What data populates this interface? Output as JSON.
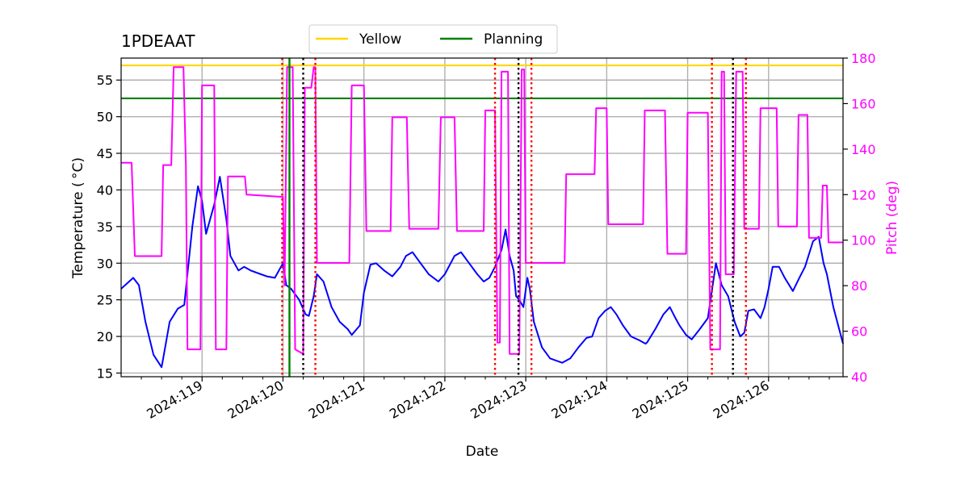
{
  "chart_data": {
    "type": "line",
    "title": "1PDEAAT",
    "xlabel": "Date",
    "ylabel": "Temperature ($^\\circ$C)",
    "ylabel_display": "Temperature ( °C)",
    "y2label": "Pitch (deg)",
    "x_unit": "day-of-year 2024",
    "xlim": [
      118.0,
      126.92
    ],
    "ylim": [
      14.5,
      58.0
    ],
    "y2lim": [
      40,
      180
    ],
    "xticks": [
      {
        "value": 119,
        "label": "2024:119"
      },
      {
        "value": 120,
        "label": "2024:120"
      },
      {
        "value": 121,
        "label": "2024:121"
      },
      {
        "value": 122,
        "label": "2024:122"
      },
      {
        "value": 123,
        "label": "2024:123"
      },
      {
        "value": 124,
        "label": "2024:124"
      },
      {
        "value": 125,
        "label": "2024:125"
      },
      {
        "value": 126,
        "label": "2024:126"
      }
    ],
    "yticks": [
      15,
      20,
      25,
      30,
      35,
      40,
      45,
      50,
      55
    ],
    "y2ticks": [
      40,
      60,
      80,
      100,
      120,
      140,
      160,
      180
    ],
    "grid": true,
    "legend_placement": "top-center",
    "legend": [
      {
        "name": "Yellow",
        "color": "#ffd700"
      },
      {
        "name": "Planning",
        "color": "#008000"
      }
    ],
    "hlines": [
      {
        "name": "Yellow",
        "y": 57.0,
        "color": "#ffd700"
      },
      {
        "name": "Planning",
        "y": 52.5,
        "color": "#008000"
      }
    ],
    "vlines": [
      {
        "x": 120.08,
        "color": "#008000",
        "style": "solid"
      },
      {
        "x": 119.99,
        "color": "#ff0000",
        "style": "dotted"
      },
      {
        "x": 120.4,
        "color": "#ff0000",
        "style": "dotted"
      },
      {
        "x": 122.62,
        "color": "#ff0000",
        "style": "dotted"
      },
      {
        "x": 123.07,
        "color": "#ff0000",
        "style": "dotted"
      },
      {
        "x": 125.3,
        "color": "#ff0000",
        "style": "dotted"
      },
      {
        "x": 125.72,
        "color": "#ff0000",
        "style": "dotted"
      },
      {
        "x": 120.25,
        "color": "#000000",
        "style": "dotted"
      },
      {
        "x": 122.91,
        "color": "#000000",
        "style": "dotted"
      },
      {
        "x": 125.56,
        "color": "#000000",
        "style": "dotted"
      }
    ],
    "series": [
      {
        "name": "",
        "axis": "left",
        "color": "#0000ff",
        "x": [
          118.0,
          118.15,
          118.22,
          118.3,
          118.4,
          118.5,
          118.52,
          118.6,
          118.7,
          118.78,
          118.88,
          118.95,
          119.0,
          119.05,
          119.15,
          119.22,
          119.3,
          119.35,
          119.45,
          119.52,
          119.6,
          119.7,
          119.8,
          119.9,
          120.0,
          120.04,
          120.1,
          120.2,
          120.28,
          120.32,
          120.38,
          120.42,
          120.5,
          120.6,
          120.7,
          120.8,
          120.85,
          120.95,
          121.0,
          121.08,
          121.15,
          121.25,
          121.35,
          121.45,
          121.52,
          121.6,
          121.7,
          121.8,
          121.92,
          122.0,
          122.12,
          122.2,
          122.3,
          122.4,
          122.48,
          122.55,
          122.62,
          122.7,
          122.75,
          122.8,
          122.85,
          122.88,
          122.92,
          122.97,
          123.02,
          123.05,
          123.1,
          123.2,
          123.3,
          123.45,
          123.55,
          123.65,
          123.75,
          123.82,
          123.9,
          123.98,
          124.05,
          124.12,
          124.2,
          124.3,
          124.4,
          124.48,
          124.5,
          124.6,
          124.7,
          124.78,
          124.85,
          124.9,
          124.98,
          125.05,
          125.15,
          125.25,
          125.35,
          125.42,
          125.5,
          125.58,
          125.65,
          125.7,
          125.75,
          125.82,
          125.9,
          125.95,
          126.0,
          126.05,
          126.13,
          126.2,
          126.3,
          126.38,
          126.45,
          126.55,
          126.62,
          126.68,
          126.72,
          126.8,
          126.92
        ],
        "y": [
          26.5,
          28.0,
          27.0,
          22.0,
          17.5,
          15.8,
          17.0,
          22.0,
          23.8,
          24.3,
          35.0,
          40.5,
          38.5,
          34.0,
          38.0,
          41.8,
          36.0,
          31.0,
          29.0,
          29.5,
          29.0,
          28.6,
          28.2,
          28.0,
          30.0,
          27.0,
          26.5,
          25.0,
          23.0,
          22.8,
          25.5,
          28.5,
          27.5,
          24.0,
          22.0,
          21.0,
          20.2,
          21.5,
          26.0,
          29.8,
          30.0,
          29.0,
          28.2,
          29.5,
          31.0,
          31.5,
          30.0,
          28.5,
          27.5,
          28.5,
          31.0,
          31.5,
          30.0,
          28.5,
          27.5,
          28.0,
          29.5,
          31.8,
          34.6,
          31.0,
          29.0,
          25.5,
          25.0,
          24.0,
          28.0,
          26.5,
          22.0,
          18.5,
          17.0,
          16.4,
          17.0,
          18.5,
          19.8,
          20.0,
          22.5,
          23.5,
          24.0,
          23.0,
          21.5,
          20.0,
          19.5,
          19.0,
          19.2,
          21.0,
          23.0,
          24.0,
          22.5,
          21.5,
          20.2,
          19.6,
          21.0,
          22.5,
          30.0,
          27.0,
          25.5,
          22.0,
          20.0,
          20.5,
          23.5,
          23.7,
          22.5,
          24.0,
          26.5,
          29.5,
          29.5,
          28.0,
          26.2,
          28.0,
          29.5,
          33.0,
          33.6,
          30.0,
          28.5,
          24.0,
          19.0
        ]
      },
      {
        "name": "",
        "axis": "right",
        "color": "#ff00ff",
        "x": [
          118.0,
          118.13,
          118.17,
          118.5,
          118.52,
          118.62,
          118.65,
          118.77,
          118.8,
          118.82,
          118.98,
          119.0,
          119.15,
          119.17,
          119.3,
          119.32,
          119.53,
          119.55,
          120.0,
          120.02,
          120.05,
          120.12,
          120.15,
          120.25,
          120.27,
          120.35,
          120.38,
          120.4,
          120.42,
          120.82,
          120.85,
          121.0,
          121.03,
          121.33,
          121.35,
          121.53,
          121.56,
          121.92,
          121.95,
          122.12,
          122.15,
          122.48,
          122.5,
          122.62,
          122.65,
          122.68,
          122.7,
          122.78,
          122.8,
          122.92,
          122.95,
          122.98,
          123.0,
          123.08,
          123.1,
          123.48,
          123.5,
          123.85,
          123.87,
          124.0,
          124.02,
          124.45,
          124.47,
          124.72,
          124.75,
          124.98,
          125.0,
          125.25,
          125.28,
          125.4,
          125.42,
          125.45,
          125.47,
          125.57,
          125.6,
          125.68,
          125.7,
          125.88,
          125.9,
          126.1,
          126.12,
          126.35,
          126.37,
          126.48,
          126.5,
          126.65,
          126.67,
          126.72,
          126.74,
          126.92
        ],
        "y": [
          134,
          134,
          93,
          93,
          133,
          133,
          176,
          176,
          133,
          52,
          52,
          168,
          168,
          52,
          52,
          128,
          128,
          120,
          119,
          80,
          176,
          176,
          52,
          50,
          167,
          167,
          176,
          176,
          90,
          90,
          168,
          168,
          104,
          104,
          154,
          154,
          105,
          105,
          154,
          154,
          104,
          104,
          157,
          157,
          55,
          55,
          174,
          174,
          50,
          50,
          175,
          175,
          90,
          90,
          90,
          90,
          129,
          129,
          158,
          158,
          107,
          107,
          157,
          157,
          94,
          94,
          156,
          156,
          52,
          52,
          174,
          174,
          85,
          85,
          174,
          174,
          105,
          105,
          158,
          158,
          106,
          106,
          155,
          155,
          101,
          101,
          124,
          124,
          99,
          99
        ]
      }
    ]
  }
}
